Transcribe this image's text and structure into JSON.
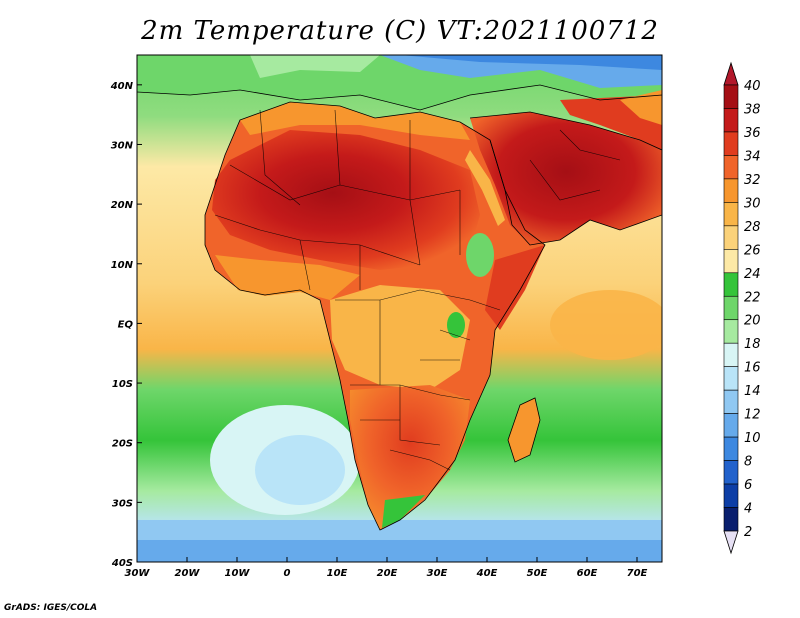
{
  "title": "2m Temperature (C) VT:2021100712",
  "credit": "GrADS: IGES/COLA",
  "map": {
    "lon_range": [
      -30,
      75
    ],
    "lat_range": [
      -40,
      45
    ],
    "lon_ticks": [
      {
        "value": -30,
        "label": "30W"
      },
      {
        "value": -20,
        "label": "20W"
      },
      {
        "value": -10,
        "label": "10W"
      },
      {
        "value": 0,
        "label": "0"
      },
      {
        "value": 10,
        "label": "10E"
      },
      {
        "value": 20,
        "label": "20E"
      },
      {
        "value": 30,
        "label": "30E"
      },
      {
        "value": 40,
        "label": "40E"
      },
      {
        "value": 50,
        "label": "50E"
      },
      {
        "value": 60,
        "label": "60E"
      },
      {
        "value": 70,
        "label": "70E"
      }
    ],
    "lat_ticks": [
      {
        "value": 40,
        "label": "40N"
      },
      {
        "value": 30,
        "label": "30N"
      },
      {
        "value": 20,
        "label": "20N"
      },
      {
        "value": 10,
        "label": "10N"
      },
      {
        "value": 0,
        "label": "EQ"
      },
      {
        "value": -10,
        "label": "10S"
      },
      {
        "value": -20,
        "label": "20S"
      },
      {
        "value": -30,
        "label": "30S"
      },
      {
        "value": -40,
        "label": "40S"
      }
    ]
  },
  "colorbar": {
    "labels": [
      "40",
      "38",
      "36",
      "34",
      "32",
      "30",
      "28",
      "26",
      "24",
      "22",
      "20",
      "18",
      "16",
      "14",
      "12",
      "10",
      "8",
      "6",
      "4",
      "2"
    ],
    "colors": [
      "#a50f15",
      "#c41a1a",
      "#e03c1f",
      "#f0642a",
      "#f7962e",
      "#f9b548",
      "#fbd27a",
      "#fde9a6",
      "#35c43a",
      "#6ed66a",
      "#a6eaa0",
      "#d8f5f5",
      "#b9e4f8",
      "#90c8f2",
      "#66aaeb",
      "#3d88e0",
      "#2262cc",
      "#0d3ea6",
      "#0a1f6e"
    ],
    "top_color": "#b2182b",
    "bottom_color": "#e6e0f4"
  },
  "colors": {
    "ocean_tropical": "#fbd27a",
    "ocean_mid": "#35c43a",
    "ocean_south": "#b9e4f8",
    "land_hot": "#e03c1f",
    "land_warm": "#f7962e"
  }
}
